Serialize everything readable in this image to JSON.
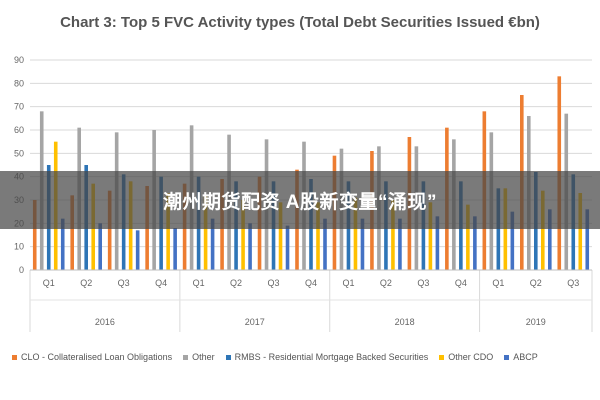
{
  "chart_data": {
    "type": "bar",
    "title": "Chart 3: Top 5 FVC Activity types (Total Debt Securities Issued €bn)",
    "xlabel": "",
    "ylabel": "",
    "ylim": [
      0,
      90
    ],
    "yticks": [
      0,
      10,
      20,
      30,
      40,
      50,
      60,
      70,
      80,
      90
    ],
    "grid": true,
    "legend_position": "bottom",
    "categories": [
      "Q1",
      "Q2",
      "Q3",
      "Q4",
      "Q1",
      "Q2",
      "Q3",
      "Q4",
      "Q1",
      "Q2",
      "Q3",
      "Q4",
      "Q1",
      "Q2",
      "Q3"
    ],
    "groups": [
      {
        "label": "2016",
        "count": 4
      },
      {
        "label": "2017",
        "count": 4
      },
      {
        "label": "2018",
        "count": 4
      },
      {
        "label": "2019",
        "count": 3
      }
    ],
    "series": [
      {
        "name": "CLO - Collateralised Loan Obligations",
        "color": "#ED7D31",
        "values": [
          30,
          32,
          34,
          36,
          37,
          39,
          40,
          43,
          49,
          51,
          57,
          61,
          68,
          75,
          83
        ]
      },
      {
        "name": "Other",
        "color": "#A5A5A5",
        "values": [
          68,
          61,
          59,
          60,
          62,
          58,
          56,
          55,
          52,
          53,
          53,
          56,
          59,
          66,
          67
        ]
      },
      {
        "name": "RMBS - Residential Mortgage Backed Securities",
        "color": "#2E75B6",
        "values": [
          45,
          45,
          41,
          40,
          40,
          38,
          38,
          39,
          38,
          38,
          38,
          38,
          35,
          42,
          41
        ]
      },
      {
        "name": "Other CDO",
        "color": "#FFC000",
        "values": [
          55,
          37,
          38,
          33,
          32,
          30,
          29,
          29,
          31,
          30,
          29,
          28,
          35,
          34,
          33
        ]
      },
      {
        "name": "ABCP",
        "color": "#4472C4",
        "values": [
          22,
          20,
          17,
          18,
          22,
          20,
          19,
          22,
          22,
          22,
          23,
          23,
          25,
          26,
          26
        ]
      }
    ]
  },
  "overlay": {
    "text": "潮州期货配资 A股新变量“涌现”"
  }
}
